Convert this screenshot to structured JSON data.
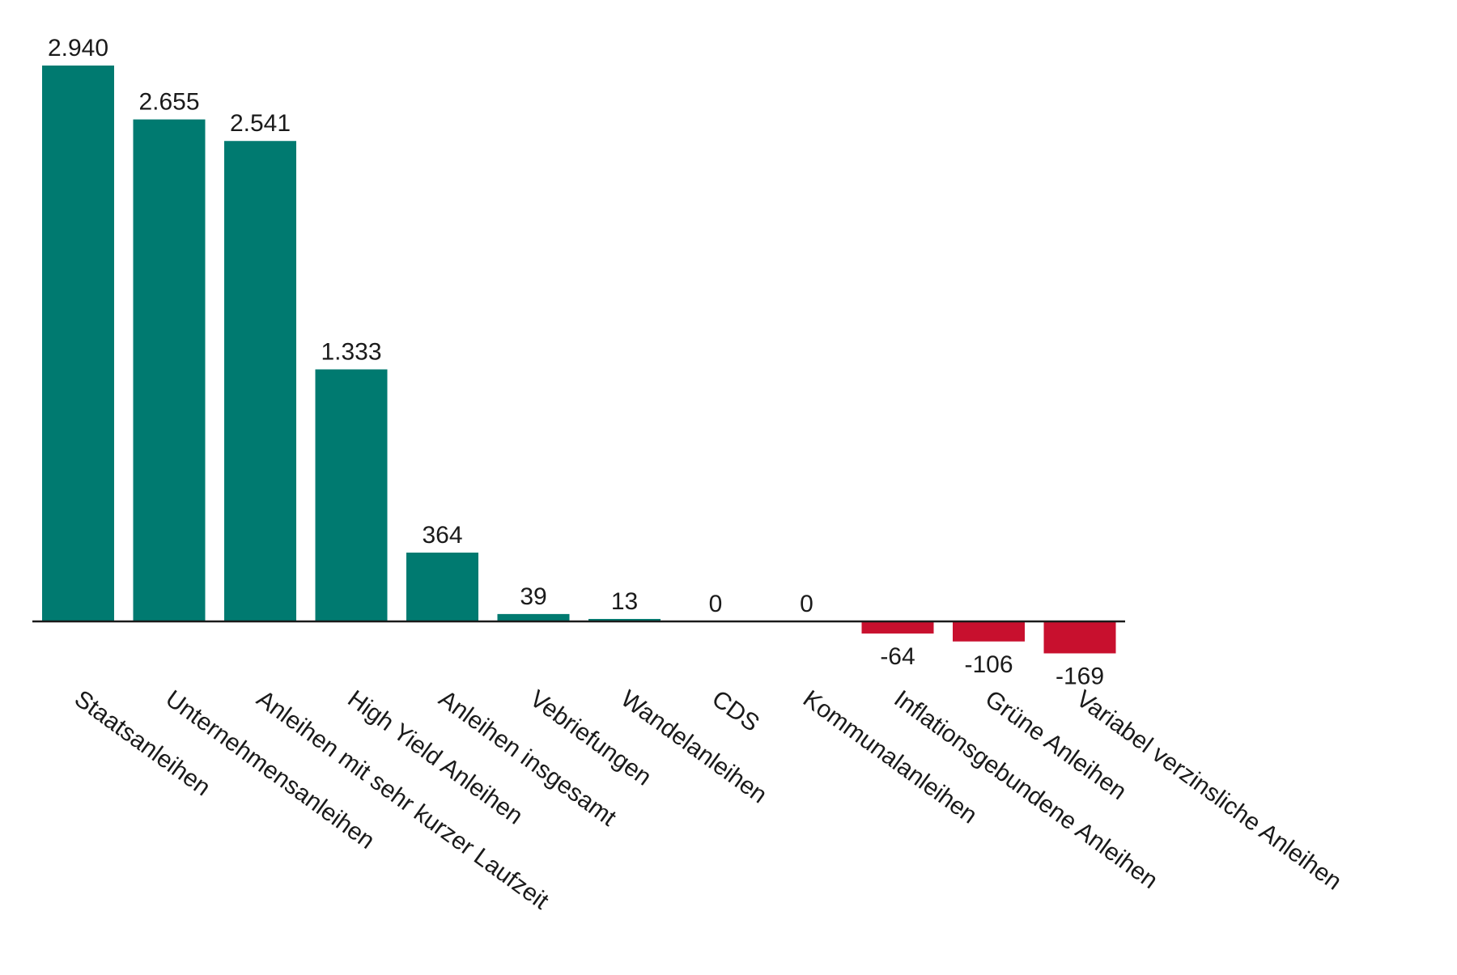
{
  "chart_data": {
    "type": "bar",
    "title": "",
    "xlabel": "",
    "ylabel": "",
    "categories": [
      "Staatsanleihen",
      "Unternehmensanleihen",
      "Anleihen mit sehr kurzer Laufzeit",
      "High Yield Anleihen",
      "Anleihen insgesamt",
      "Vebriefungen",
      "Wandelanleihen",
      "CDS",
      "Kommunalanleihen",
      "Inflationsgebundene Anleihen",
      "Grüne Anleihen",
      "Variabel verzinsliche Anleihen"
    ],
    "values": [
      2940,
      2655,
      2541,
      1333,
      364,
      39,
      13,
      0,
      0,
      -64,
      -106,
      -169
    ],
    "value_labels": [
      "2.940",
      "2.655",
      "2.541",
      "1.333",
      "364",
      "39",
      "13",
      "0",
      "0",
      "-64",
      "-106",
      "-169"
    ],
    "ylim": [
      -169,
      2940
    ],
    "grid": false,
    "legend": "none",
    "colors": {
      "positive": "#007a70",
      "negative": "#c8102e",
      "axis": "#1a1a1a"
    }
  }
}
